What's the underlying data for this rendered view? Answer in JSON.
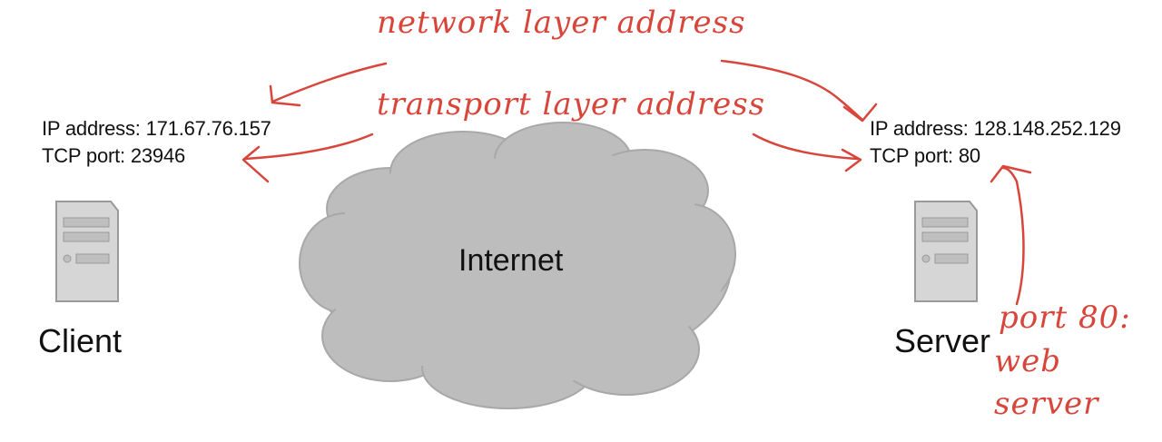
{
  "client": {
    "name": "Client",
    "ip_line": "IP address: 171.67.76.157",
    "port_line": "TCP port: 23946"
  },
  "server": {
    "name": "Server",
    "ip_line": "IP address: 128.148.252.129",
    "port_line": "TCP port: 80"
  },
  "cloud": {
    "label": "Internet"
  },
  "annotations": {
    "network": "network  layer  address",
    "transport": "transport  layer  address",
    "port80_line1": "port 80:",
    "port80_line2": "web",
    "port80_line3": "server"
  },
  "colors": {
    "ink": "#d8453a",
    "cloud": "#bdbdbd",
    "server_body": "#d6d6d6"
  }
}
